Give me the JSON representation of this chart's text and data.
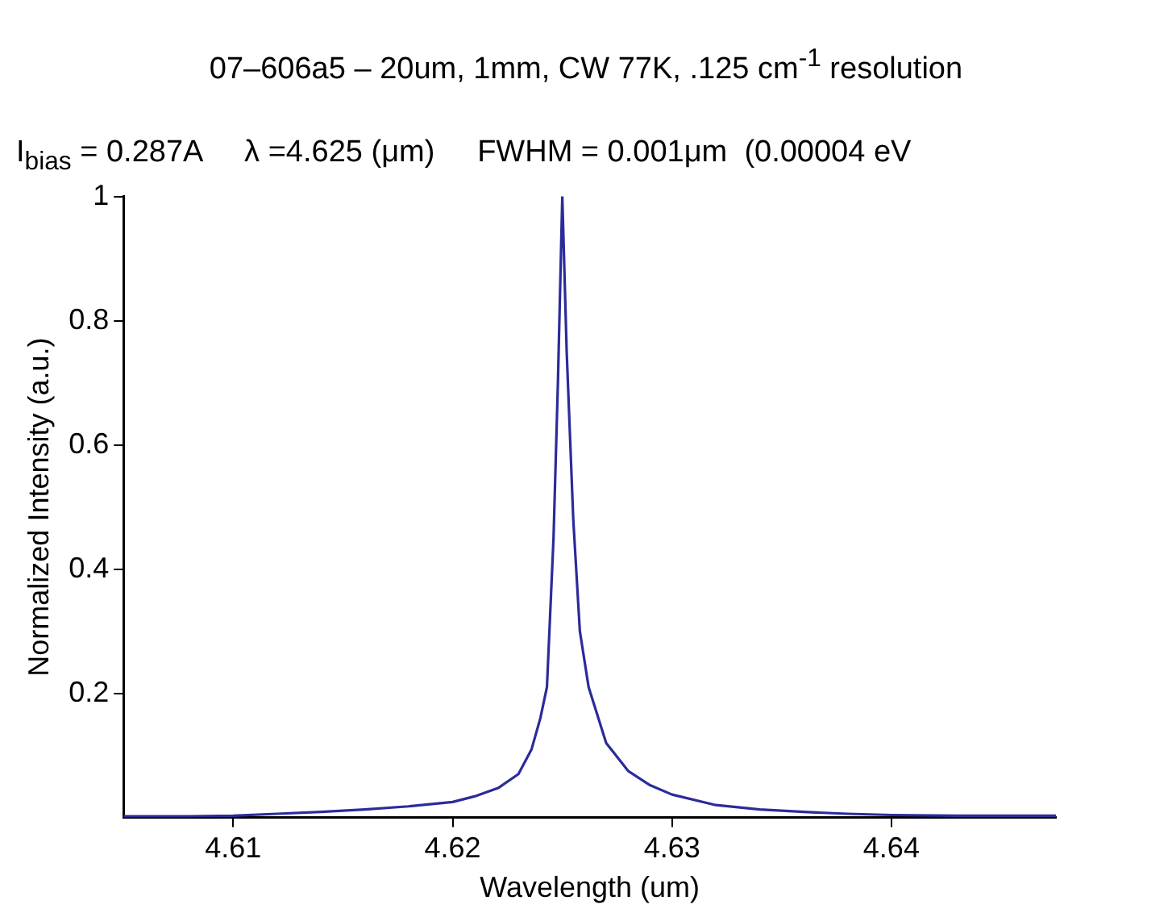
{
  "chart_data": {
    "type": "line",
    "title": "07–606a5 – 20um, 1mm, CW 77K, .125 cm$^{-1}$ resolution",
    "subtitle": "I$_{bias}$ = 0.287A     λ =4.625 (μm)     FWHM = 0.001μm  (0.00004 eV",
    "xlabel": "Wavelength (um)",
    "ylabel": "Normalized Intensity (a.u.)",
    "x": [
      4.605,
      4.608,
      4.61,
      4.612,
      4.614,
      4.616,
      4.618,
      4.62,
      4.621,
      4.6221,
      4.623,
      4.6236,
      4.624,
      4.6243,
      4.6246,
      4.6248,
      4.625,
      4.6252,
      4.6255,
      4.6258,
      4.6262,
      4.627,
      4.628,
      4.629,
      4.63,
      4.632,
      4.634,
      4.636,
      4.638,
      4.64,
      4.643,
      4.6475
    ],
    "series": [
      {
        "color": "#2b2b9c",
        "values": [
          0.002,
          0.002,
          0.003,
          0.006,
          0.009,
          0.013,
          0.018,
          0.025,
          0.034,
          0.048,
          0.07,
          0.11,
          0.16,
          0.21,
          0.45,
          0.7,
          1,
          0.75,
          0.48,
          0.3,
          0.21,
          0.12,
          0.075,
          0.052,
          0.037,
          0.02,
          0.013,
          0.009,
          0.006,
          0.004,
          0.003,
          0.003
        ]
      }
    ],
    "xlim": [
      4.605,
      4.6475
    ],
    "ylim": [
      0,
      1
    ],
    "xticks": [
      4.61,
      4.62,
      4.63,
      4.64
    ],
    "yticks": [
      0.2,
      0.4,
      0.6,
      0.8,
      1
    ],
    "marker": "none",
    "line_style": "solid"
  }
}
